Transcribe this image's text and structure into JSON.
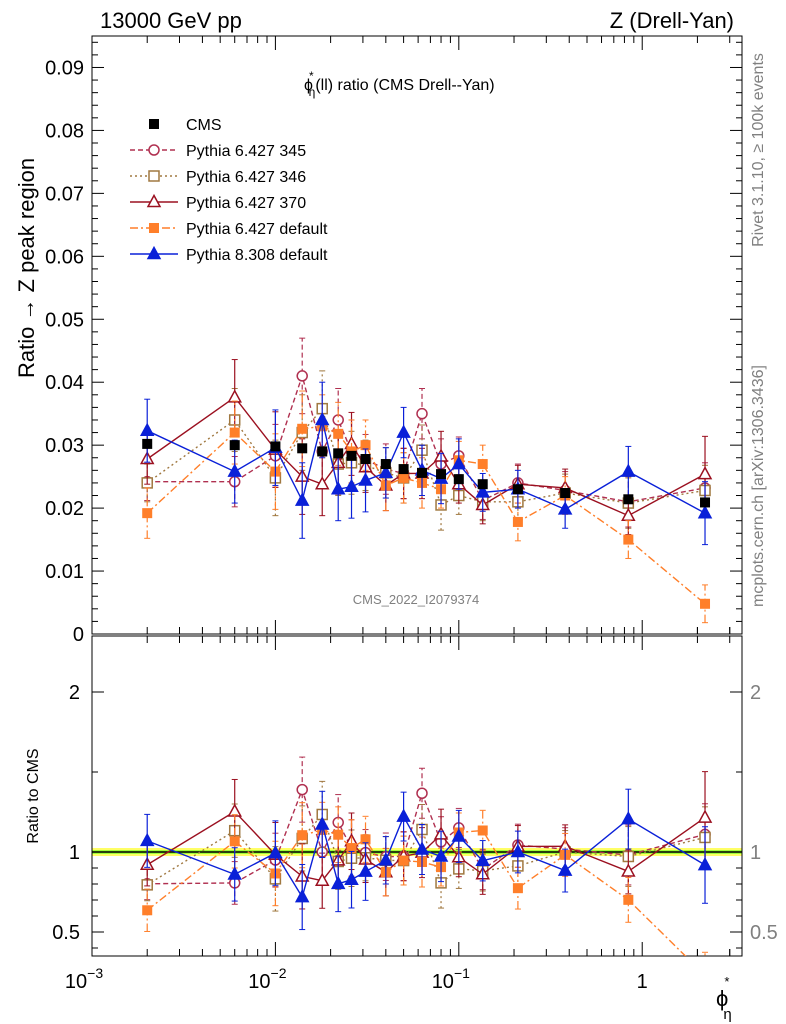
{
  "header": {
    "left": "13000 GeV pp",
    "right": "Z (Drell-Yan)"
  },
  "side": {
    "rivet": "Rivet 3.1.10, ≥ 100k events",
    "mcplots": "mcplots.cern.ch [arXiv:1306.3436]"
  },
  "watermark": "CMS_2022_I2079374",
  "chart_data": {
    "type": "line",
    "title": "ϕ*η(ll) ratio (CMS Drell--Yan)",
    "title_main": "ϕ",
    "title_sup": "*",
    "title_sub": "η",
    "title_rest": "(ll) ratio (CMS Drell--Yan)",
    "x": [
      0.002,
      0.006,
      0.01,
      0.014,
      0.018,
      0.022,
      0.026,
      0.031,
      0.04,
      0.05,
      0.063,
      0.08,
      0.1,
      0.135,
      0.21,
      0.38,
      0.84,
      2.2
    ],
    "xscale": "log",
    "xlim": [
      0.001,
      3.5
    ],
    "xlabel_main": "ϕ",
    "xlabel_sup": "*",
    "xlabel_sub": "η",
    "x_ticks": [
      {
        "base": "10",
        "exp": "−3",
        "value": 0.001
      },
      {
        "base": "10",
        "exp": "−2",
        "value": 0.01
      },
      {
        "base": "10",
        "exp": "−1",
        "value": 0.1
      },
      {
        "base": "1",
        "exp": "",
        "value": 1
      }
    ],
    "top_panel": {
      "ylabel": "Ratio → Z peak region",
      "ylim": [
        0,
        0.095
      ],
      "y_ticks": [
        "0",
        "0.01",
        "0.02",
        "0.03",
        "0.04",
        "0.05",
        "0.06",
        "0.07",
        "0.08",
        "0.09"
      ],
      "y_tick_values": [
        0,
        0.01,
        0.02,
        0.03,
        0.04,
        0.05,
        0.06,
        0.07,
        0.08,
        0.09
      ]
    },
    "ratio_panel": {
      "ylabel": "Ratio to CMS",
      "ylim": [
        0.35,
        2.35
      ],
      "y_ticks": [
        "0.5",
        "1",
        "2"
      ],
      "y_tick_values": [
        0.5,
        1,
        2
      ],
      "band_color_inner": "#99ff33",
      "band_color_outer": "#ffff66"
    },
    "data": {
      "name": "CMS",
      "color": "#000000",
      "values": [
        0.0302,
        0.03,
        0.0298,
        0.0295,
        0.029,
        0.0287,
        0.0283,
        0.0278,
        0.027,
        0.0262,
        0.0256,
        0.0254,
        0.0246,
        0.0238,
        0.023,
        0.0224,
        0.0214,
        0.0209
      ]
    },
    "series": [
      {
        "name": "Pythia 6.427 345",
        "color": "#b03050",
        "marker": "circle-open",
        "dash": "5,3",
        "values": [
          0.0242,
          0.0242,
          0.0283,
          0.041,
          0.029,
          0.034,
          0.029,
          0.0277,
          0.0262,
          0.0255,
          0.035,
          0.027,
          0.0283,
          0.0212,
          0.024,
          0.0228,
          0.021,
          0.0232
        ],
        "errors": [
          0.003,
          0.004,
          0.005,
          0.006,
          0.005,
          0.005,
          0.005,
          0.004,
          0.004,
          0.004,
          0.004,
          0.004,
          0.003,
          0.003,
          0.003,
          0.003,
          0.004,
          0.004
        ]
      },
      {
        "name": "Pythia 6.427 346",
        "color": "#a07840",
        "marker": "square-open",
        "dash": "2,3",
        "values": [
          0.024,
          0.034,
          0.0248,
          0.032,
          0.0358,
          0.027,
          0.0272,
          0.0268,
          0.0256,
          0.0248,
          0.0292,
          0.0205,
          0.022,
          0.021,
          0.021,
          0.0224,
          0.0208,
          0.0228
        ],
        "errors": [
          0.003,
          0.005,
          0.006,
          0.006,
          0.006,
          0.005,
          0.005,
          0.004,
          0.004,
          0.004,
          0.004,
          0.004,
          0.003,
          0.003,
          0.003,
          0.003,
          0.004,
          0.004
        ]
      },
      {
        "name": "Pythia 6.427 370",
        "color": "#9b1020",
        "marker": "triangle-open",
        "dash": "",
        "values": [
          0.0278,
          0.0376,
          0.0293,
          0.025,
          0.0238,
          0.0272,
          0.0302,
          0.0265,
          0.0236,
          0.0255,
          0.0255,
          0.0282,
          0.0238,
          0.0205,
          0.0238,
          0.0232,
          0.0188,
          0.0254
        ],
        "errors": [
          0.004,
          0.006,
          0.006,
          0.006,
          0.005,
          0.005,
          0.005,
          0.004,
          0.004,
          0.004,
          0.004,
          0.004,
          0.003,
          0.003,
          0.003,
          0.003,
          0.003,
          0.006
        ]
      },
      {
        "name": "Pythia 6.427 default",
        "color": "#ff7f2a",
        "marker": "square-filled",
        "dash": "8,3,2,3",
        "values": [
          0.0192,
          0.032,
          0.0258,
          0.0326,
          0.033,
          0.0318,
          0.029,
          0.03,
          0.0236,
          0.0248,
          0.024,
          0.023,
          0.0276,
          0.027,
          0.0178,
          0.022,
          0.015,
          0.0048
        ],
        "errors": [
          0.004,
          0.005,
          0.006,
          0.006,
          0.005,
          0.005,
          0.005,
          0.004,
          0.004,
          0.004,
          0.004,
          0.003,
          0.003,
          0.003,
          0.003,
          0.003,
          0.003,
          0.003
        ]
      },
      {
        "name": "Pythia 8.308 default",
        "color": "#0a20d8",
        "marker": "triangle-filled",
        "dash": "",
        "values": [
          0.0323,
          0.0258,
          0.0296,
          0.0212,
          0.034,
          0.023,
          0.0234,
          0.0244,
          0.0256,
          0.032,
          0.026,
          0.0247,
          0.027,
          0.0225,
          0.023,
          0.0198,
          0.0258,
          0.0192
        ],
        "errors": [
          0.005,
          0.005,
          0.006,
          0.006,
          0.006,
          0.005,
          0.005,
          0.005,
          0.004,
          0.004,
          0.004,
          0.004,
          0.004,
          0.003,
          0.003,
          0.003,
          0.004,
          0.005
        ]
      }
    ]
  }
}
